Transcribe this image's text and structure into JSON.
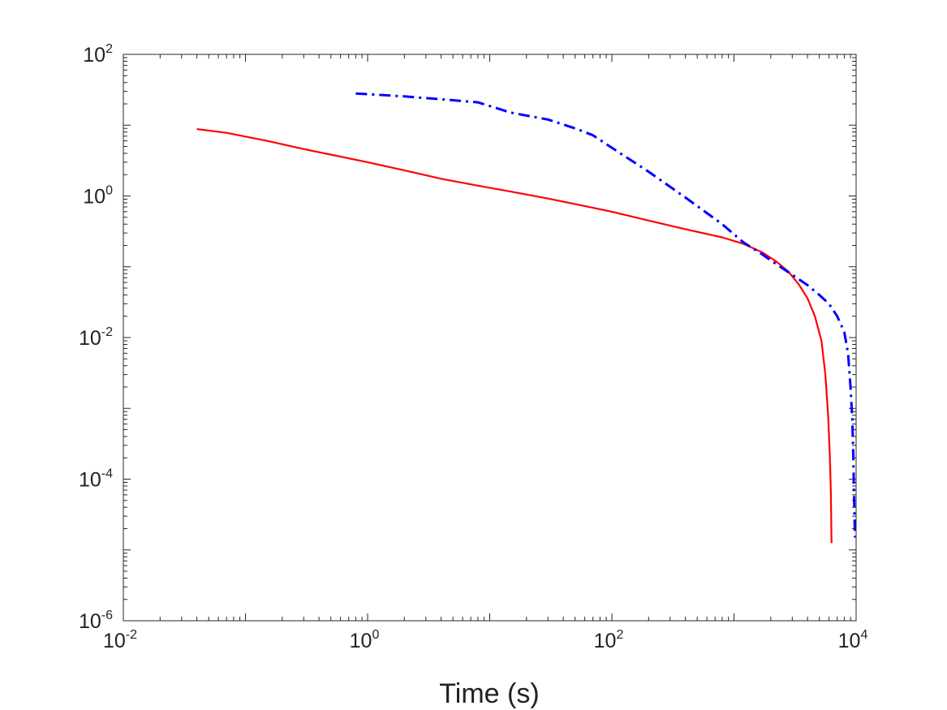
{
  "chart_data": {
    "type": "line",
    "title": "",
    "xlabel": "Time (s)",
    "ylabel": "",
    "xscale": "log",
    "yscale": "log",
    "xlim": [
      0.01,
      10000
    ],
    "ylim": [
      1e-06,
      100
    ],
    "grid": false,
    "box": true,
    "x_ticks": [
      {
        "value": 0.01,
        "base": "10",
        "exp": "-2"
      },
      {
        "value": 1,
        "base": "10",
        "exp": "0"
      },
      {
        "value": 100,
        "base": "10",
        "exp": "2"
      },
      {
        "value": 10000,
        "base": "10",
        "exp": "4"
      }
    ],
    "y_ticks": [
      {
        "value": 1e-06,
        "base": "10",
        "exp": "-6"
      },
      {
        "value": 0.0001,
        "base": "10",
        "exp": "-4"
      },
      {
        "value": 0.01,
        "base": "10",
        "exp": "-2"
      },
      {
        "value": 1,
        "base": "10",
        "exp": "0"
      },
      {
        "value": 100,
        "base": "10",
        "exp": "2"
      }
    ],
    "series": [
      {
        "color": "#ff0000",
        "style": "solid",
        "x": [
          0.04,
          0.07,
          0.15,
          0.3,
          0.6,
          1,
          2,
          4,
          8,
          15,
          30,
          60,
          100,
          200,
          400,
          800,
          1200,
          1700,
          2200,
          2800,
          3400,
          4000,
          4600,
          5200,
          5600,
          5900,
          6100,
          6200,
          6250,
          6280,
          6300
        ],
        "y": [
          8.8,
          7.8,
          6.0,
          4.6,
          3.6,
          3.0,
          2.3,
          1.75,
          1.4,
          1.15,
          0.92,
          0.72,
          0.6,
          0.45,
          0.34,
          0.26,
          0.21,
          0.16,
          0.12,
          0.085,
          0.056,
          0.036,
          0.02,
          0.009,
          0.003,
          0.0008,
          0.0002,
          7e-05,
          3e-05,
          1.5e-05,
          1.25e-05
        ]
      },
      {
        "color": "#0000ff",
        "style": "dashdot",
        "x": [
          0.8,
          2,
          5,
          8,
          15,
          30,
          50,
          70,
          100,
          200,
          400,
          800,
          1200,
          1700,
          2200,
          3000,
          4000,
          5000,
          6000,
          7000,
          8000,
          8600,
          9000,
          9300,
          9500,
          9600,
          9700,
          9750,
          9800
        ],
        "y": [
          28,
          25.5,
          22.5,
          21,
          15,
          12,
          9,
          7.2,
          4.8,
          2.2,
          0.95,
          0.4,
          0.22,
          0.15,
          0.11,
          0.077,
          0.055,
          0.04,
          0.03,
          0.02,
          0.012,
          0.006,
          0.002,
          0.0007,
          0.0002,
          7e-05,
          3e-05,
          2e-05,
          1.5e-05
        ]
      }
    ]
  }
}
